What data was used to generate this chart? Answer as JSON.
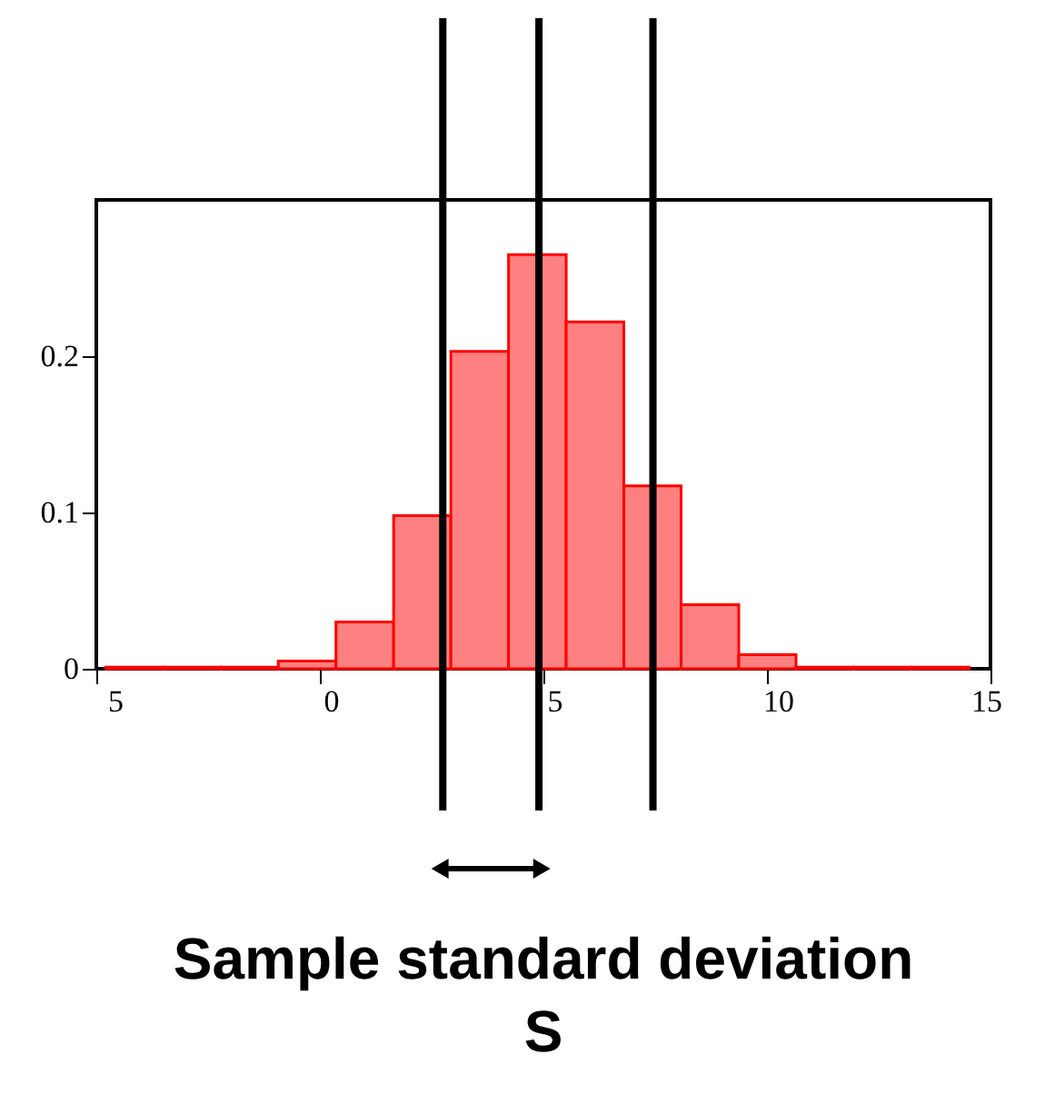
{
  "chart_data": {
    "type": "histogram",
    "title": "Sample standard deviation S",
    "bins": [
      -4.79,
      -3.5,
      -2.21,
      -0.93,
      0.36,
      1.65,
      2.93,
      4.22,
      5.51,
      6.8,
      8.08,
      9.37,
      10.65,
      11.94,
      13.23,
      14.52
    ],
    "values": [
      0.001,
      0.001,
      0.001,
      0.005,
      0.03,
      0.098,
      0.203,
      0.265,
      0.222,
      0.117,
      0.041,
      0.009,
      0.001,
      0.001,
      0.001
    ],
    "color": "#ff8080",
    "xlim": [
      -5,
      15
    ],
    "xticks": [
      {
        "value": -5,
        "label": "5"
      },
      0,
      5,
      10,
      15
    ],
    "ylim": [
      0,
      0.3
    ],
    "yticks": [
      0,
      0.1,
      0.2
    ],
    "ref_lines": [
      {
        "axis": "x",
        "value": 2.75,
        "color": "#000000"
      },
      {
        "axis": "x",
        "value": 4.9,
        "color": "#000000"
      },
      {
        "axis": "x",
        "value": 7.45,
        "color": "#000000"
      }
    ],
    "grid": false
  }
}
